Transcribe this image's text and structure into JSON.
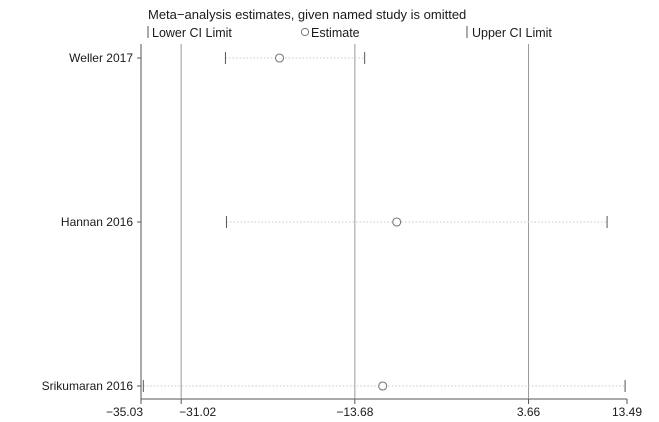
{
  "chart_data": {
    "type": "scatter",
    "title": "Meta−analysis estimates, given named study is omitted",
    "legend": {
      "placement": "top",
      "lower": "Lower CI Limit",
      "estimate": "Estimate",
      "upper": "Upper CI Limit"
    },
    "studies": [
      {
        "name": "Weller 2017",
        "lower": -26.6,
        "estimate": -21.2,
        "upper": -12.7
      },
      {
        "name": "Hannan 2016",
        "lower": -26.5,
        "estimate": -9.5,
        "upper": 11.5
      },
      {
        "name": "Srikumaran 2016",
        "lower": -34.8,
        "estimate": -10.9,
        "upper": 13.3
      }
    ],
    "reference_lines": [
      -31.02,
      -13.68,
      3.66
    ],
    "xlim": [
      -35.03,
      13.49
    ],
    "xticks": [
      -35.03,
      -31.02,
      -13.68,
      3.66,
      13.49
    ],
    "xtick_labels": [
      "−35.03",
      "−31.02",
      "−13.68",
      "3.66",
      "13.49"
    ],
    "colors": {
      "axis": "#555555",
      "ref": "#999999",
      "ci": "#c8c8c8",
      "marker": "#777777",
      "text": "#1a1a1a"
    }
  }
}
